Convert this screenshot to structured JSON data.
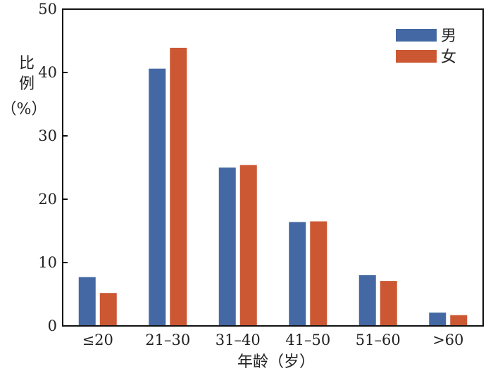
{
  "chart_data": {
    "type": "bar",
    "categories": [
      "≤20",
      "21–30",
      "31–40",
      "41–50",
      "51–60",
      ">60"
    ],
    "series": [
      {
        "name": "男",
        "values": [
          7.7,
          40.6,
          25.0,
          16.4,
          8.0,
          2.1
        ]
      },
      {
        "name": "女",
        "values": [
          5.2,
          43.9,
          25.4,
          16.5,
          7.1,
          1.7
        ]
      }
    ],
    "xlabel": "年龄（岁）",
    "ylabel_lines": [
      "比",
      "例",
      "（%）"
    ],
    "ylim": [
      0,
      50
    ],
    "yticks": [
      0,
      10,
      20,
      30,
      40,
      50
    ],
    "legend_position": "top-right",
    "grid": false,
    "colors": {
      "男": "#4468a3",
      "女": "#cc5733"
    }
  }
}
